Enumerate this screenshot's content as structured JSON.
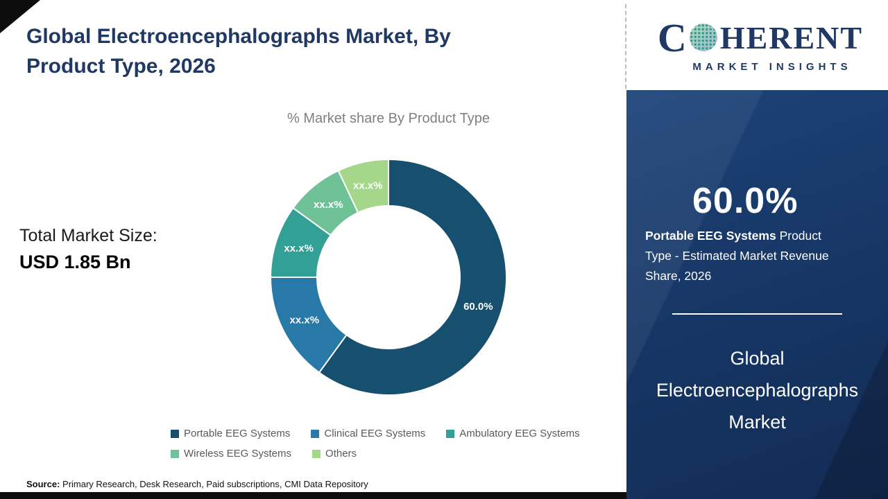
{
  "title": "Global Electroencephalographs Market, By Product Type, 2026",
  "chart_subtitle": "% Market share By Product Type",
  "total_market": {
    "label": "Total Market Size:",
    "value": "USD 1.85 Bn"
  },
  "chart_data": {
    "type": "pie",
    "donut": true,
    "title": "% Market share By Product Type",
    "categories": [
      "Portable EEG Systems",
      "Clinical EEG Systems",
      "Ambulatory EEG Systems",
      "Wireless EEG Systems",
      "Others"
    ],
    "values": [
      60,
      15,
      10,
      8,
      7
    ],
    "slice_labels": [
      "60.0%",
      "xx.x%",
      "xx.x%",
      "xx.x%",
      "xx.x%"
    ],
    "colors": [
      "#174f6e",
      "#2878a8",
      "#33a096",
      "#6fc295",
      "#a4d78a"
    ],
    "start_angle_deg": 0,
    "direction": "clockwise",
    "legend_position": "bottom"
  },
  "source": {
    "label": "Source:",
    "text": "Primary Research, Desk Research, Paid subscriptions, CMI Data Repository"
  },
  "logo": {
    "letter_c": "C",
    "letters_rest": "HERENT",
    "tagline": "MARKET INSIGHTS"
  },
  "panel": {
    "stat_value": "60.0%",
    "desc_bold": "Portable EEG Systems",
    "desc_rest": " Product Type - Estimated Market Revenue Share, 2026",
    "market_title": "Global Electroencephalographs Market"
  }
}
